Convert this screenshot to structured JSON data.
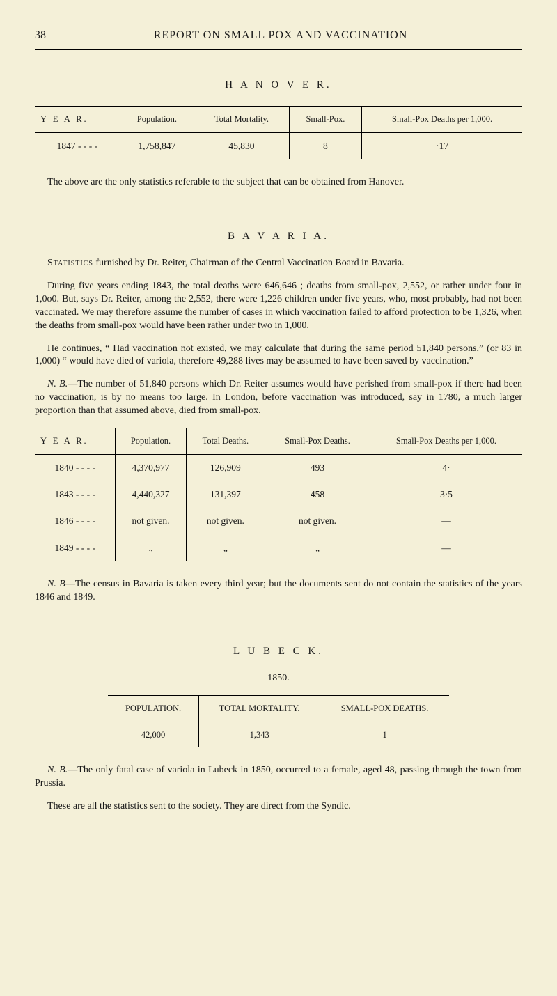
{
  "header": {
    "page_number": "38",
    "title": "REPORT ON SMALL POX AND VACCINATION"
  },
  "hanover": {
    "heading": "H A N O V E R.",
    "table": {
      "columns": [
        "Y E A R.",
        "Population.",
        "Total Mortality.",
        "Small-Pox.",
        "Small-Pox Deaths per 1,000."
      ],
      "row": {
        "year": "1847    -    -    -    -",
        "population": "1,758,847",
        "total_mortality": "45,830",
        "small_pox": "8",
        "sp_per_1000": "·17"
      }
    },
    "note": "The above are the only statistics referable to the subject that can be obtained from Hanover."
  },
  "bavaria": {
    "heading": "B A V A R I A.",
    "para1_pre": "Statistics",
    "para1": " furnished by Dr. Reiter, Chairman of the Central Vaccination Board in Bavaria.",
    "para2": "During five years ending 1843, the total deaths were 646,646 ; deaths from small-pox, 2,552, or rather under four in 1,0o0. But, says Dr. Reiter, among the 2,552, there were 1,226 children under five years, who, most probably, had not been vaccinated. We may therefore assume the number of cases in which vaccination failed to afford protection to be 1,326, when the deaths from small-pox would have been rather under two in 1,000.",
    "para3": "He continues, “ Had vaccination not existed, we may calculate that during the same period 51,840 persons,” (or 83 in 1,000) “ would have died of variola, therefore 49,288 lives may be assumed to have been saved by vaccination.”",
    "para4_pre": "N. B.",
    "para4": "—The number of 51,840 persons which Dr. Reiter assumes would have perished from small-pox if there had been no vaccination, is by no means too large. In London, before vaccination was introduced, say in 1780, a much larger proportion than that assumed above, died from small-pox.",
    "table": {
      "columns": [
        "Y E A R.",
        "Population.",
        "Total Deaths.",
        "Small-Pox Deaths.",
        "Small-Pox Deaths per 1,000."
      ],
      "rows": [
        {
          "year": "1840    -    -    -    -",
          "population": "4,370,977",
          "total_deaths": "126,909",
          "sp_deaths": "493",
          "sp_per_1000": "4·"
        },
        {
          "year": "1843    -    -    -    -",
          "population": "4,440,327",
          "total_deaths": "131,397",
          "sp_deaths": "458",
          "sp_per_1000": "3·5"
        },
        {
          "year": "1846    -    -    -    -",
          "population": "not given.",
          "total_deaths": "not given.",
          "sp_deaths": "not given.",
          "sp_per_1000": "—"
        },
        {
          "year": "1849    -    -    -    -",
          "population": "„",
          "total_deaths": "„",
          "sp_deaths": "„",
          "sp_per_1000": "—"
        }
      ]
    },
    "footnote_pre": "N. B",
    "footnote": "—The census in Bavaria is taken every third year; but the documents sent do not contain the statistics of the years 1846 and 1849."
  },
  "lubeck": {
    "heading": "L U B E C K.",
    "year": "1850.",
    "table": {
      "columns": [
        "POPULATION.",
        "TOTAL MORTALITY.",
        "SMALL-POX DEATHS."
      ],
      "row": {
        "population": "42,000",
        "total_mortality": "1,343",
        "sp_deaths": "1"
      }
    },
    "note_pre": "N. B.",
    "note": "—The only fatal case of variola in Lubeck in 1850, occurred to a female, aged 48, passing through the town from Prussia.",
    "closing": "These are all the statistics sent to the society. They are direct from the Syndic."
  }
}
